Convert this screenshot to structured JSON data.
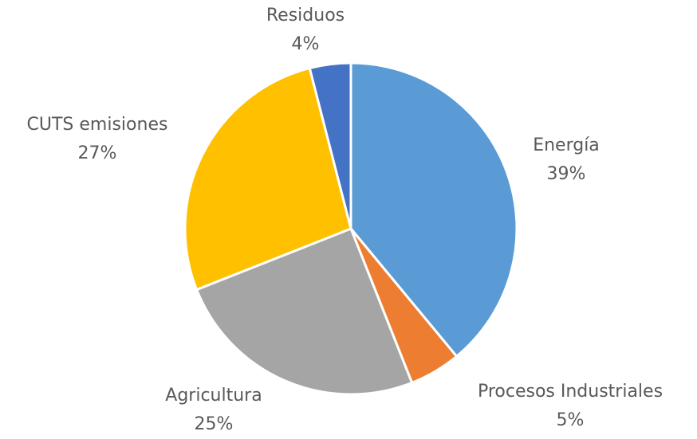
{
  "chart_data": {
    "type": "pie",
    "categories": [
      "Energía",
      "Procesos Industriales",
      "Agricultura",
      "CUTS emisiones",
      "Residuos"
    ],
    "values": [
      39,
      5,
      25,
      27,
      4
    ],
    "value_labels": [
      "39%",
      "5%",
      "25%",
      "27%",
      "4%"
    ],
    "colors": [
      "#5b9bd5",
      "#ed7d31",
      "#a5a5a5",
      "#ffc000",
      "#4472c4"
    ]
  }
}
